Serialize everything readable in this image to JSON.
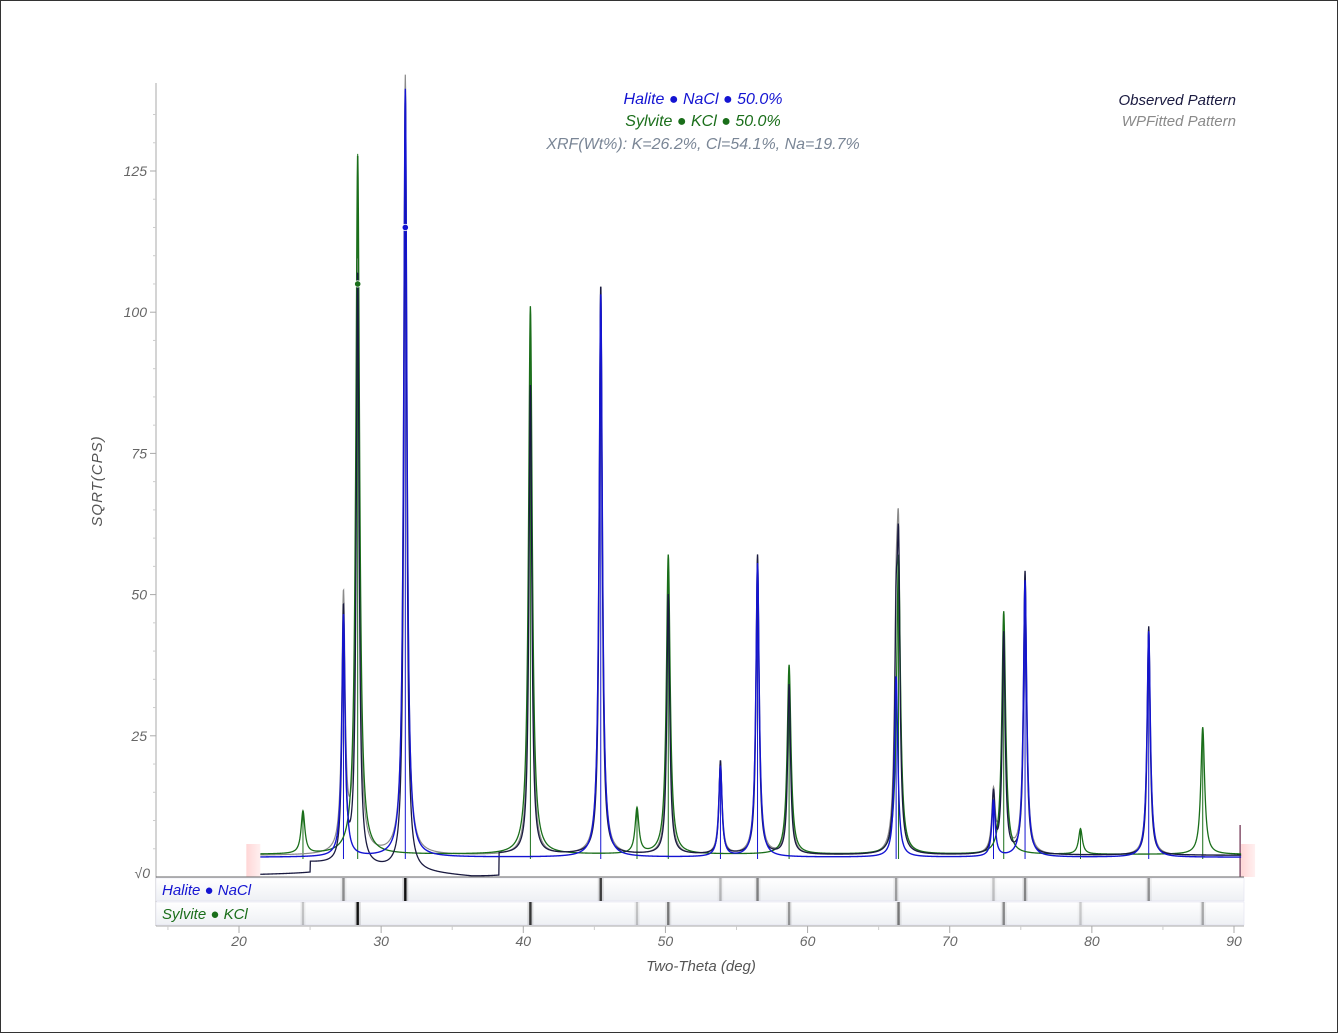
{
  "chart_data": {
    "type": "line",
    "xlabel": "Two-Theta (deg)",
    "ylabel": "SQRT(CPS)",
    "xlim": [
      14,
      91
    ],
    "ylim": [
      0,
      140
    ],
    "x_ticks": [
      20,
      30,
      40,
      50,
      60,
      70,
      80,
      90
    ],
    "y_ticks": [
      25,
      50,
      75,
      100,
      125
    ],
    "y_zero_label": "√0",
    "annotations": {
      "halite": "Halite ● NaCl ● 50.0%",
      "sylvite": "Sylvite ● KCl ● 50.0%",
      "xrf": "XRF(Wt%): K=26.2%, Cl=54.1%, Na=19.7%"
    },
    "legend": {
      "position": "top-right",
      "observed": "Observed Pattern",
      "fitted": "WPFitted Pattern"
    },
    "range_markers": [
      21.5,
      90.5
    ],
    "phases": [
      {
        "label": "Halite ● NaCl",
        "color": "#1414d2",
        "baseline": 3.5,
        "peaks": [
          {
            "x": 27.35,
            "y": 43.0
          },
          {
            "x": 31.7,
            "y": 136.0
          },
          {
            "x": 45.45,
            "y": 100.0
          },
          {
            "x": 53.87,
            "y": 16.0
          },
          {
            "x": 56.48,
            "y": 52.0
          },
          {
            "x": 66.23,
            "y": 32.0
          },
          {
            "x": 73.08,
            "y": 10.0
          },
          {
            "x": 75.3,
            "y": 49.0
          },
          {
            "x": 84.0,
            "y": 40.0
          }
        ]
      },
      {
        "label": "Sylvite ● KCl",
        "color": "#1a6e1a",
        "baseline": 4.0,
        "peaks": [
          {
            "x": 24.5,
            "y": 7.5
          },
          {
            "x": 28.35,
            "y": 124.0
          },
          {
            "x": 40.5,
            "y": 97.0
          },
          {
            "x": 48.0,
            "y": 8.0
          },
          {
            "x": 50.2,
            "y": 53.0
          },
          {
            "x": 58.7,
            "y": 33.5
          },
          {
            "x": 66.4,
            "y": 53.0
          },
          {
            "x": 73.8,
            "y": 43.0
          },
          {
            "x": 79.2,
            "y": 4.5
          },
          {
            "x": 87.8,
            "y": 22.5
          }
        ]
      }
    ],
    "observed": {
      "color": "#1a1a40",
      "peaks": [
        {
          "x": 27.35,
          "y": 45.0
        },
        {
          "x": 28.35,
          "y": 105.0
        },
        {
          "x": 31.7,
          "y": 138.0
        },
        {
          "x": 40.5,
          "y": 83.0
        },
        {
          "x": 45.45,
          "y": 101.0
        },
        {
          "x": 50.2,
          "y": 46.0
        },
        {
          "x": 53.87,
          "y": 16.5
        },
        {
          "x": 56.48,
          "y": 53.0
        },
        {
          "x": 58.7,
          "y": 30.0
        },
        {
          "x": 66.23,
          "y": 33.0
        },
        {
          "x": 66.4,
          "y": 47.0
        },
        {
          "x": 73.08,
          "y": 10.5
        },
        {
          "x": 73.8,
          "y": 39.0
        },
        {
          "x": 75.3,
          "y": 50.0
        },
        {
          "x": 84.0,
          "y": 40.5
        }
      ]
    },
    "fitted": {
      "color": "#8a8a8a"
    },
    "highlight_points": [
      {
        "x": 31.7,
        "y": 115.0,
        "color": "#1414d2"
      },
      {
        "x": 28.35,
        "y": 105.0,
        "color": "#1a6e1a"
      }
    ]
  }
}
